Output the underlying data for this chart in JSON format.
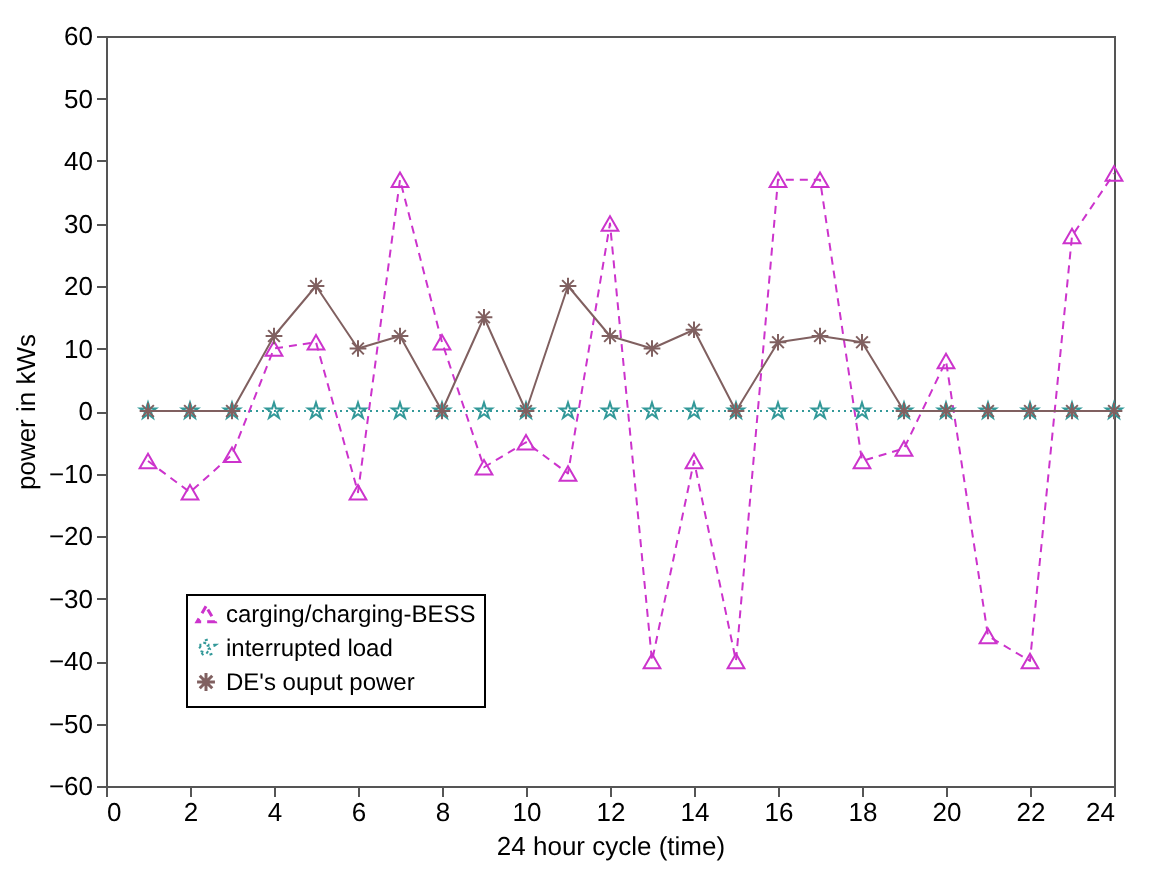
{
  "chart_data": {
    "type": "line",
    "xlabel": "24 hour cycle (time)",
    "ylabel": "power in kWs",
    "x": [
      1,
      2,
      3,
      4,
      5,
      6,
      7,
      8,
      9,
      10,
      11,
      12,
      13,
      14,
      15,
      16,
      17,
      18,
      19,
      20,
      21,
      22,
      23,
      24
    ],
    "series": [
      {
        "name": "carging/charging-BESS",
        "color": "#cc33cc",
        "marker": "triangle",
        "line_style": "dashed",
        "values": [
          -8,
          -13,
          -7,
          10,
          11,
          -13,
          37,
          11,
          -9,
          -5,
          -10,
          30,
          -40,
          -8,
          -40,
          37,
          37,
          -8,
          -6,
          8,
          -36,
          -40,
          28,
          38
        ]
      },
      {
        "name": "interrupted load",
        "color": "#339999",
        "marker": "star",
        "line_style": "dotted",
        "values": [
          0,
          0,
          0,
          0,
          0,
          0,
          0,
          0,
          0,
          0,
          0,
          0,
          0,
          0,
          0,
          0,
          0,
          0,
          0,
          0,
          0,
          0,
          0,
          0
        ]
      },
      {
        "name": "DE's ouput power",
        "color": "#806060",
        "marker": "cross",
        "line_style": "solid",
        "values": [
          0,
          0,
          0,
          12,
          20,
          10,
          12,
          0,
          15,
          0,
          20,
          12,
          10,
          13,
          0,
          11,
          12,
          11,
          0,
          0,
          0,
          0,
          0,
          0
        ]
      }
    ],
    "xlim": [
      0,
      24
    ],
    "xticks": [
      0,
      2,
      4,
      6,
      8,
      10,
      12,
      14,
      16,
      18,
      20,
      22,
      24
    ],
    "ylim": [
      -60,
      60
    ],
    "yticks": [
      -60,
      -50,
      -40,
      -30,
      -20,
      -10,
      0,
      10,
      20,
      30,
      40,
      50,
      60
    ],
    "grid": false,
    "legend": "bottom left"
  }
}
